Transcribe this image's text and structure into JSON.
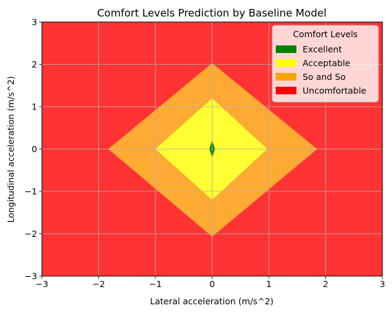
{
  "chart_data": {
    "type": "heatmap",
    "title": "Comfort Levels Prediction by Baseline Model",
    "xlabel": "Lateral acceleration (m/s^2)",
    "ylabel": "Longitudinal acceleration (m/s^2)",
    "xlim": [
      -3,
      3
    ],
    "ylim": [
      -3,
      3
    ],
    "x_ticks": [
      -3,
      -2,
      -1,
      0,
      1,
      2,
      3
    ],
    "y_ticks": [
      -3,
      -2,
      -1,
      0,
      1,
      2,
      3
    ],
    "x_tick_labels": [
      "−3",
      "−2",
      "−1",
      "0",
      "1",
      "2",
      "3"
    ],
    "y_tick_labels": [
      "−3",
      "−2",
      "−1",
      "0",
      "1",
      "2",
      "3"
    ],
    "grid": true,
    "legend": {
      "title": "Comfort Levels",
      "placement": "top-right",
      "entries": [
        {
          "label": "Excellent",
          "color": "#008000"
        },
        {
          "label": "Acceptable",
          "color": "#ffff00"
        },
        {
          "label": "So and So",
          "color": "#ffa500"
        },
        {
          "label": "Uncomfortable",
          "color": "#ff0000"
        }
      ]
    },
    "regions": [
      {
        "level": "Uncomfortable",
        "fill": "#ff3333",
        "polygon": [
          [
            -3,
            -3
          ],
          [
            3,
            -3
          ],
          [
            3,
            3
          ],
          [
            -3,
            3
          ]
        ]
      },
      {
        "level": "So and So",
        "fill": "#ffaa33",
        "polygon": [
          [
            -1.83,
            0
          ],
          [
            0,
            2.03
          ],
          [
            1.85,
            0
          ],
          [
            0,
            -2.07
          ]
        ]
      },
      {
        "level": "Acceptable",
        "fill": "#ffff33",
        "polygon": [
          [
            -1.0,
            0
          ],
          [
            0,
            1.2
          ],
          [
            0.97,
            0
          ],
          [
            0,
            -1.2
          ]
        ]
      },
      {
        "level": "Excellent",
        "fill": "#008000",
        "polygon": [
          [
            -0.05,
            0
          ],
          [
            0,
            0.2
          ],
          [
            0.05,
            0
          ],
          [
            0,
            -0.2
          ]
        ]
      }
    ]
  }
}
